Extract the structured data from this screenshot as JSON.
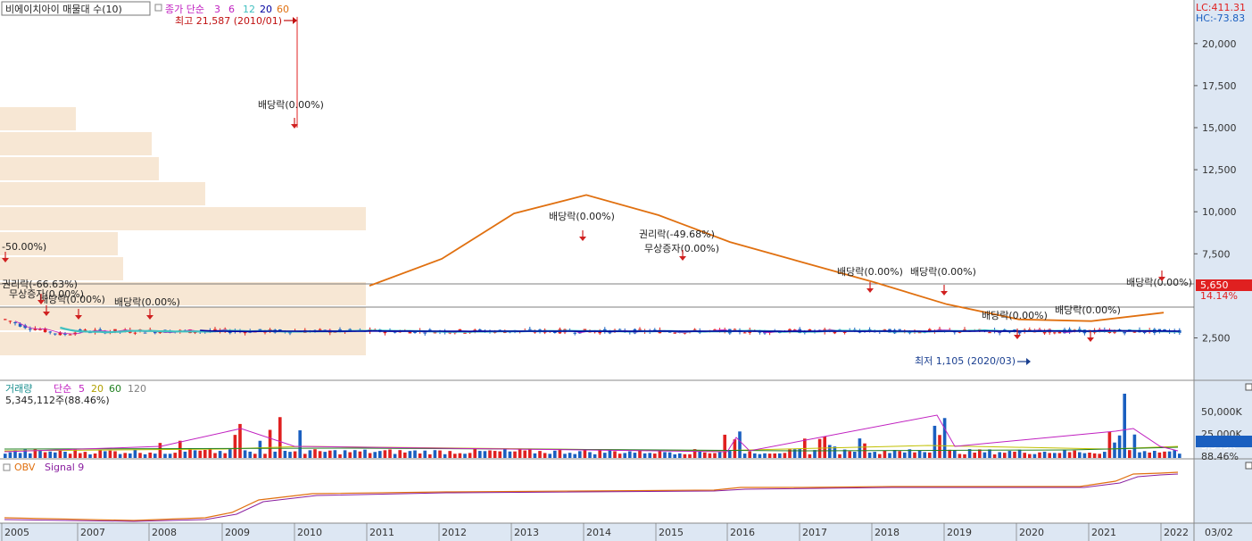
{
  "header": {
    "indicator_box": "비에이치아이 매물대 수(10)",
    "ma_label": "종가 단순",
    "ma_periods": [
      "3",
      "6",
      "12",
      "20",
      "60"
    ],
    "ma_colors": [
      "#c020c0",
      "#c020c0",
      "#40c0c0",
      "#0000a0",
      "#e07010"
    ]
  },
  "right_header": {
    "lc": "LC:411.31",
    "hc": "HC:-73.83"
  },
  "volume_header": {
    "label": "거래량",
    "ma_label": "단순",
    "periods": [
      "5",
      "20",
      "60",
      "120"
    ],
    "period_colors": [
      "#c020c0",
      "#c0c000",
      "#208020",
      "#808080"
    ],
    "value": "5,345,112주(88.46%)"
  },
  "obv_header": {
    "label": "OBV",
    "signal": "Signal 9"
  },
  "bottom_right_label": "03/02",
  "colors": {
    "up": "#e02020",
    "down": "#1a5fc0",
    "price_badge": "#e02020",
    "volume_badge": "#1a5fc0"
  },
  "chart_data": {
    "type": "candlestick",
    "price_axis": {
      "ticks": [
        "20,000",
        "17,500",
        "15,000",
        "12,500",
        "10,000",
        "7,500",
        "5,650",
        "2,500"
      ],
      "ylim": [
        0,
        22500
      ]
    },
    "current_price": "5,650",
    "current_change": "14.14%",
    "volume_axis": {
      "ticks": [
        "50,000K",
        "25,000K",
        "5,345K",
        "88.46%"
      ]
    },
    "x_labels": [
      "2005",
      "2007",
      "2008",
      "2009",
      "2010",
      "2011",
      "2012",
      "2013",
      "2014",
      "2015",
      "2016",
      "2017",
      "2018",
      "2019",
      "2020",
      "2021",
      "2022"
    ],
    "annotations": {
      "high": "최고 21,587 (2010/01)",
      "low": "최저 1,105 (2020/03)",
      "events": [
        "-50.00%)",
        "권리락(-66.63%)",
        "무상증자(0.00%)",
        "배당락(0.00%)",
        "배당락(0.00%)",
        "배당락(0.00%)",
        "배당락(0.00%)",
        "권리락(-49.68%)",
        "무상증자(0.00%)",
        "배당락(0.00%)",
        "배당락(0.00%)",
        "배당락(0.00%)",
        "배당락(0.00%)",
        "배당락(0.00%)"
      ]
    },
    "volume_profile": [
      52,
      58,
      118,
      120,
      150,
      190,
      205,
      190,
      175,
      262
    ],
    "ma60": [
      [
        "2011.0",
        5600
      ],
      [
        "2012.0",
        7200
      ],
      [
        "2013.0",
        9900
      ],
      [
        "2014.0",
        11000
      ],
      [
        "2015.0",
        9800
      ],
      [
        "2016.0",
        8200
      ],
      [
        "2017.0",
        7000
      ],
      [
        "2018.0",
        5800
      ],
      [
        "2019.0",
        4500
      ],
      [
        "2020.0",
        3600
      ],
      [
        "2021.0",
        3500
      ],
      [
        "2022.0",
        4000
      ]
    ]
  }
}
